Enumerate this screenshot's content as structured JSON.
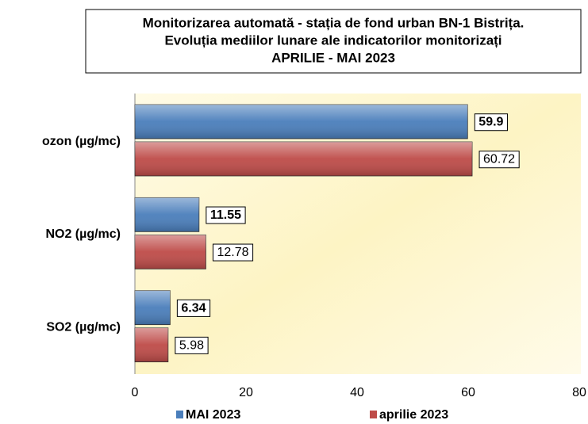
{
  "chart_data": {
    "type": "barh",
    "title": [
      "Monitorizarea automată  - stația de fond urban BN-1 Bistrița.",
      "Evoluția mediilor lunare ale indicatorilor monitorizați",
      "APRILIE - MAI   2023"
    ],
    "categories": [
      "ozon (µg/mc)",
      "NO2 (µg/mc)",
      "SO2 (µg/mc)"
    ],
    "series": [
      {
        "name": "MAI 2023",
        "color": "#4a7ebb",
        "values": [
          59.9,
          11.55,
          6.34
        ]
      },
      {
        "name": "aprilie 2023",
        "color": "#be4b48",
        "values": [
          60.72,
          12.78,
          5.98
        ]
      }
    ],
    "xlim": [
      0,
      80
    ],
    "xticks": [
      0,
      20,
      40,
      60,
      80
    ],
    "legend": "bottom"
  }
}
